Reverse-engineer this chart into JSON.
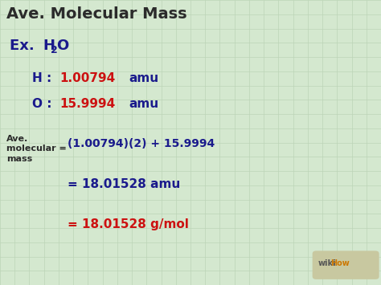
{
  "bg_color": "#d4e8cf",
  "grid_color": "#bdd4b8",
  "title": "Ave. Molecular Mass",
  "title_color": "#2b2b2b",
  "title_fontsize": 14,
  "example_label": "Ex. ",
  "example_label_color": "#1a1a8c",
  "h2o_H": "H",
  "h2o_sub": "2",
  "h2o_O": "O",
  "h2o_color": "#1a1a8c",
  "h2o_fontsize": 13,
  "h_label": "H",
  "h_colon": " : ",
  "h_value": "1.00794",
  "h_unit": " amu",
  "o_label": "O",
  "o_colon": " : ",
  "o_value": "15.9994",
  "o_unit": " amu",
  "element_color": "#1a1a8c",
  "value_color": "#cc1111",
  "unit_color": "#1a1a8c",
  "line_fontsize": 11,
  "ave_label_color": "#2b2b2b",
  "eq1_value": "(1.00794)(2) + 15.9994",
  "eq1_color": "#1a1a8c",
  "eq1_fontsize": 10,
  "eq2_value": "= 18.01528 amu",
  "eq2_color": "#1a1a8c",
  "eq2_fontsize": 11,
  "eq3_value": "= 18.01528 g/mol",
  "eq3_color": "#cc1111",
  "eq3_fontsize": 11,
  "wikihow_text": "wiki",
  "wikihow_text2": "How",
  "wikihow_color1": "#555555",
  "wikihow_color2": "#cc7700",
  "wikihow_bg": "#c8c8a0"
}
